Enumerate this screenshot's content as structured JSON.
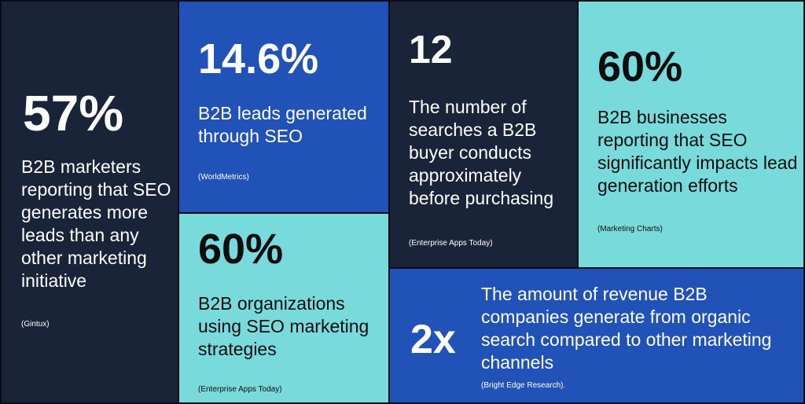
{
  "stats": [
    {
      "value": "57%",
      "description": "B2B marketers reporting that SEO generates more leads than any other marketing initiative",
      "source": "(Gintux)",
      "color": "#1a2438"
    },
    {
      "value": "14.6%",
      "description": "B2B leads generated through SEO",
      "source": "(WorldMetrics)",
      "color": "#2152b8"
    },
    {
      "value": "60%",
      "description": "B2B organizations using SEO marketing strategies",
      "source": "(Enterprise Apps Today)",
      "color": "#79dadb"
    },
    {
      "value": "12",
      "description": "The number of searches a B2B buyer conducts approximately before purchasing",
      "source": "(Enterprise Apps Today)",
      "color": "#1a2438"
    },
    {
      "value": "60%",
      "description": "B2B businesses reporting that SEO significantly impacts lead generation efforts",
      "source": "(Marketing Charts)",
      "color": "#79dadb"
    },
    {
      "value": "2x",
      "description": "The amount of revenue B2B companies generate from organic search compared to other marketing channels",
      "source": "(Bright Edge Research).",
      "color": "#2152b8"
    }
  ]
}
